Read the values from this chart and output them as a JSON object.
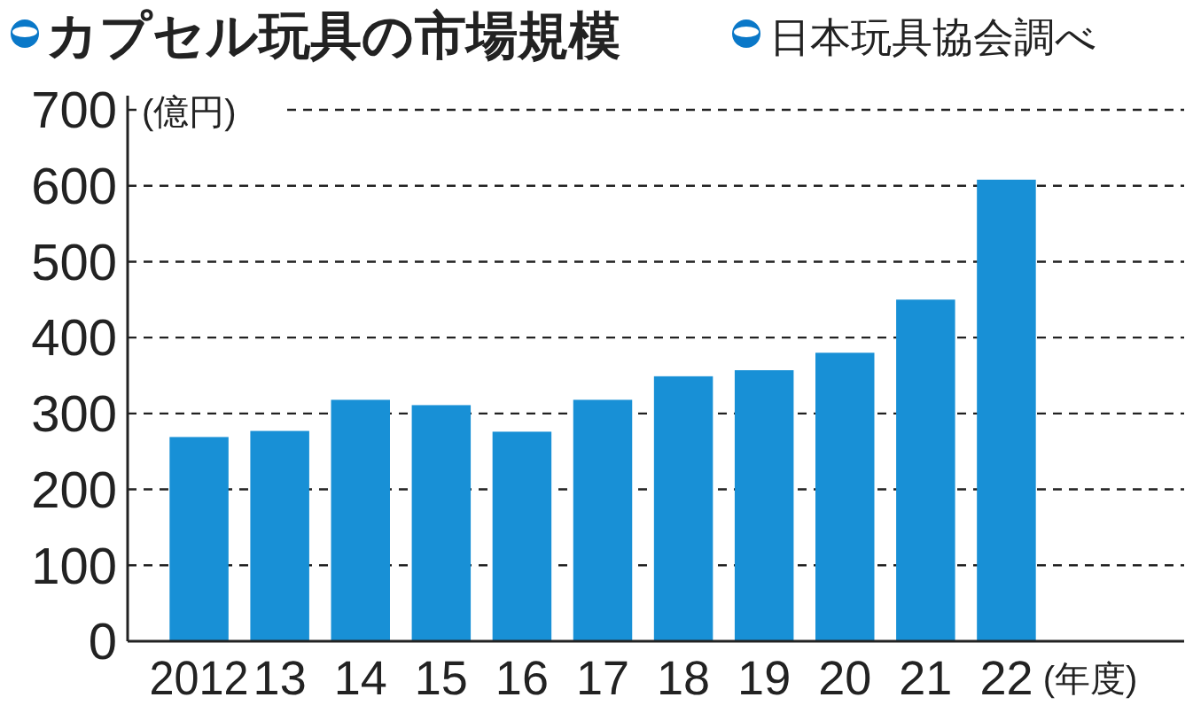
{
  "chart_data": {
    "type": "bar",
    "title": "カプセル玩具の市場規模",
    "subtitle": "日本玩具協会調べ",
    "ylabel": "(億円)",
    "xlabel": "(年度)",
    "categories": [
      "2012",
      "13",
      "14",
      "15",
      "16",
      "17",
      "18",
      "19",
      "20",
      "21",
      "22"
    ],
    "values": [
      269,
      277,
      318,
      311,
      276,
      318,
      349,
      357,
      380,
      450,
      608
    ],
    "color": "#1890d6",
    "ylim": [
      0,
      700
    ],
    "yticks": [
      0,
      100,
      200,
      300,
      400,
      500,
      600,
      700
    ],
    "grid": "y"
  }
}
